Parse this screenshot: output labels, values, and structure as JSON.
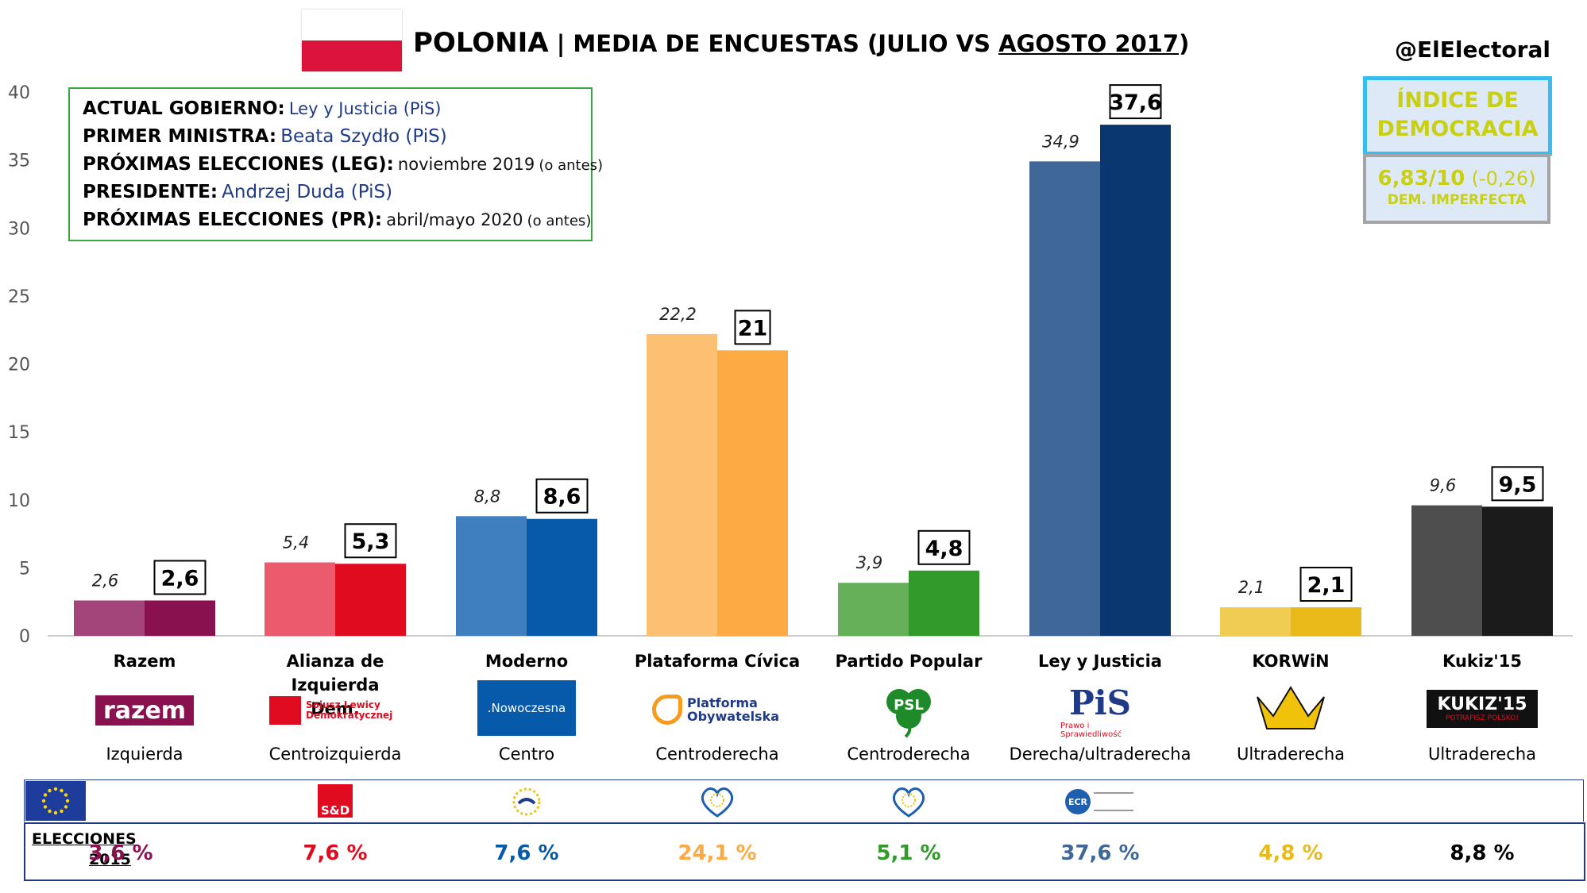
{
  "header": {
    "title_main": "POLONIA",
    "title_sep": " | ",
    "title_rest": "MEDIA DE ENCUESTAS (JULIO VS ",
    "title_underlined": "AGOSTO 2017",
    "title_close": ")",
    "handle": "@ElElectoral"
  },
  "democracy": {
    "title_line1": "ÍNDICE DE",
    "title_line2": "DEMOCRACIA",
    "score": "6,83/10",
    "change": "(-0,26)",
    "classification": "DEM. IMPERFECTA"
  },
  "info": [
    {
      "key": "ACTUAL GOBIERNO:",
      "value": "Ley y Justicia (PiS)",
      "note": ""
    },
    {
      "key": "PRIMER MINISTRA:",
      "value": "Beata Szydło (PiS)",
      "note": ""
    },
    {
      "key": "PRÓXIMAS ELECCIONES (LEG):",
      "value": "noviembre 2019",
      "note": "(o antes)"
    },
    {
      "key": "PRESIDENTE:",
      "value": "Andrzej Duda (PiS)",
      "note": ""
    },
    {
      "key": "PRÓXIMAS ELECCIONES (PR):",
      "value": "abril/mayo 2020",
      "note": "(o antes)"
    }
  ],
  "chart_data": {
    "type": "bar",
    "title": "POLONIA | MEDIA DE ENCUESTAS (JULIO VS AGOSTO 2017)",
    "xlabel": "",
    "ylabel": "",
    "ylim": [
      0,
      40
    ],
    "yticks": [
      0,
      5,
      10,
      15,
      20,
      25,
      30,
      35,
      40
    ],
    "grid": false,
    "categories": [
      "Razem",
      "Alianza de Izquierda Dem.",
      "Moderno",
      "Plataforma Cívica",
      "Partido Popular",
      "Ley y Justicia",
      "KORWiN",
      "Kukiz'15"
    ],
    "series": [
      {
        "values": [
          2.6,
          5.4,
          8.8,
          22.2,
          3.9,
          34.9,
          2.1,
          9.6
        ],
        "labels": [
          "2,6",
          "5,4",
          "8,8",
          "22,2",
          "3,9",
          "34,9",
          "2,1",
          "9,6"
        ]
      },
      {
        "values": [
          2.6,
          5.3,
          8.6,
          21,
          4.8,
          37.6,
          2.1,
          9.5
        ],
        "labels": [
          "2,6",
          "5,3",
          "8,6",
          "21",
          "4,8",
          "37,6",
          "2,1",
          "9,5"
        ]
      }
    ],
    "colors_first": [
      "#a3457a",
      "#ec5b6d",
      "#3f7fc0",
      "#fdc073",
      "#66b05a",
      "#3f6898",
      "#f0cd52",
      "#4e4e4e"
    ],
    "colors_second": [
      "#8a1150",
      "#e00b1f",
      "#075aaa",
      "#fdaa45",
      "#319a2b",
      "#0a376f",
      "#e9ba1a",
      "#1b1b1b"
    ]
  },
  "parties": [
    {
      "name_l1": "Razem",
      "name_l2": "",
      "ideology": "Izquierda",
      "logo_text": "razem",
      "eu_group": "",
      "elections_2015": "3,6 %",
      "elec_color": "#8a1150"
    },
    {
      "name_l1": "Alianza de Izquierda",
      "name_l2": "Dem.",
      "ideology": "Centroizquierda",
      "logo_text": "Sojusz Lewicy Demokratycznej",
      "eu_group": "S&D",
      "elections_2015": "7,6 %",
      "elec_color": "#e00b1f"
    },
    {
      "name_l1": "Moderno",
      "name_l2": "",
      "ideology": "Centro",
      "logo_text": ".Nowoczesna",
      "eu_group": "alde",
      "elections_2015": "7,6 %",
      "elec_color": "#075aaa"
    },
    {
      "name_l1": "Plataforma Cívica",
      "name_l2": "",
      "ideology": "Centroderecha",
      "logo_text": "Platforma Obywatelska",
      "eu_group": "epp",
      "elections_2015": "24,1 %",
      "elec_color": "#fdaa45"
    },
    {
      "name_l1": "Partido Popular",
      "name_l2": "",
      "ideology": "Centroderecha",
      "logo_text": "PSL",
      "eu_group": "epp",
      "elections_2015": "5,1 %",
      "elec_color": "#319a2b"
    },
    {
      "name_l1": "Ley y Justicia",
      "name_l2": "",
      "ideology": "Derecha/ultraderecha",
      "logo_text": "PiS",
      "logo_sub": "Prawo i Sprawiedliwość",
      "eu_group": "ECR",
      "elections_2015": "37,6 %",
      "elec_color": "#3f6898"
    },
    {
      "name_l1": "KORWiN",
      "name_l2": "",
      "ideology": "Ultraderecha",
      "logo_text": "",
      "eu_group": "",
      "elections_2015": "4,8 %",
      "elec_color": "#e9ba1a"
    },
    {
      "name_l1": "Kukiz'15",
      "name_l2": "",
      "ideology": "Ultraderecha",
      "logo_text": "KUKIZ'15",
      "logo_sub": "POTRAFISZ POLSKO!",
      "eu_group": "",
      "elections_2015": "8,8 %",
      "elec_color": "#000000"
    }
  ],
  "elections": {
    "label_l1": "ELECCIONES",
    "label_l2": "2015"
  }
}
